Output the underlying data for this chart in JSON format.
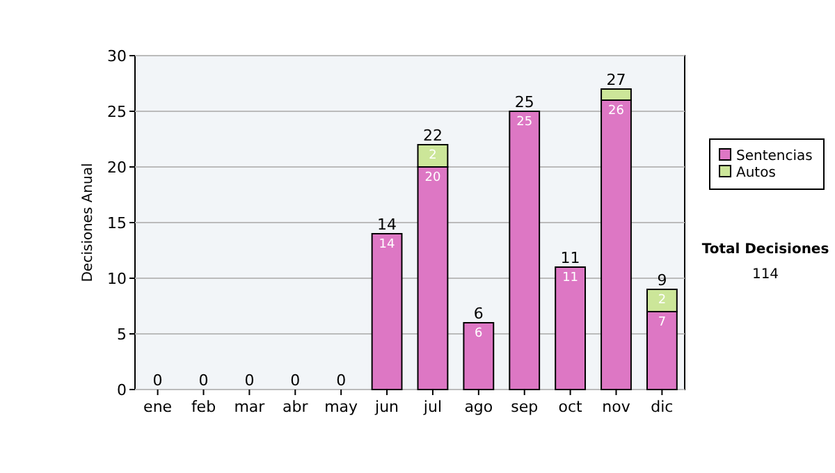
{
  "chart_data": {
    "type": "bar",
    "stacked": true,
    "ylabel": "Decisiones Anual",
    "categories": [
      "ene",
      "feb",
      "mar",
      "abr",
      "may",
      "jun",
      "jul",
      "ago",
      "sep",
      "oct",
      "nov",
      "dic"
    ],
    "series": [
      {
        "name": "Sentencias",
        "color": "#dd77c4",
        "values": [
          0,
          0,
          0,
          0,
          0,
          14,
          20,
          6,
          25,
          11,
          26,
          7
        ],
        "value_labels": [
          null,
          null,
          null,
          null,
          null,
          "14",
          "20",
          "6",
          "25",
          "11",
          "26",
          "7"
        ]
      },
      {
        "name": "Autos",
        "color": "#cce699",
        "values": [
          0,
          0,
          0,
          0,
          0,
          0,
          2,
          0,
          0,
          0,
          1,
          2
        ],
        "value_labels": [
          null,
          null,
          null,
          null,
          null,
          null,
          "2",
          null,
          null,
          null,
          null,
          "2"
        ]
      }
    ],
    "totals": [
      "0",
      "0",
      "0",
      "0",
      "0",
      "14",
      "22",
      "6",
      "25",
      "11",
      "27",
      "9"
    ],
    "ylim": [
      0,
      30
    ],
    "yticks": [
      0,
      5,
      10,
      15,
      20,
      25,
      30
    ],
    "grid": "y",
    "legend": "right",
    "annotations": [
      "Total Decisiones",
      "114"
    ]
  }
}
